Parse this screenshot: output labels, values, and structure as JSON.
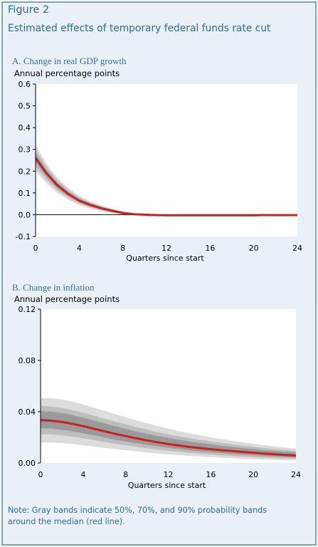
{
  "figure": {
    "label": "Figure 2",
    "title": "Estimated effects of temporary federal funds rate cut"
  },
  "note": "Note: Gray bands indicate 50%, 70%, and 90% probability bands around the median (red line).",
  "colors": {
    "frame_border": "#7aa6c2",
    "frame_background": "#e9f1f7",
    "title_text": "#2f6c9c",
    "median_line": "#c8211e",
    "band_90": "#dcdcdc",
    "band_70": "#bdbdbd",
    "band_50": "#9a9a9a"
  },
  "chart_data": [
    {
      "type": "area",
      "title": "A. Change in real GDP growth",
      "ylabel": "Annual percentage points",
      "xlabel": "Quarters since start",
      "xlim": [
        0,
        24
      ],
      "ylim": [
        -0.1,
        0.6
      ],
      "xticks": [
        0,
        4,
        8,
        12,
        16,
        20,
        24
      ],
      "yticks": [
        -0.1,
        0.0,
        0.1,
        0.2,
        0.3,
        0.4,
        0.5,
        0.6
      ],
      "ytick_labels": [
        "-0.1",
        "0.0",
        "0.1",
        "0.2",
        "0.3",
        "0.4",
        "0.5",
        "0.6"
      ],
      "x": [
        0,
        1,
        2,
        3,
        4,
        5,
        6,
        7,
        8,
        9,
        10,
        11,
        12,
        13,
        14,
        15,
        16,
        17,
        18,
        19,
        20,
        21,
        22,
        23,
        24
      ],
      "series": [
        {
          "name": "median",
          "values": [
            0.26,
            0.19,
            0.135,
            0.095,
            0.065,
            0.045,
            0.03,
            0.018,
            0.008,
            0.002,
            0.0,
            -0.002,
            -0.003,
            -0.003,
            -0.003,
            -0.003,
            -0.003,
            -0.003,
            -0.003,
            -0.003,
            -0.003,
            -0.002,
            -0.002,
            -0.002,
            -0.002
          ]
        }
      ],
      "bands": [
        {
          "name": "90%",
          "lower": [
            0.2,
            0.145,
            0.1,
            0.068,
            0.045,
            0.028,
            0.016,
            0.007,
            0.001,
            -0.003,
            -0.005,
            -0.006,
            -0.007,
            -0.007,
            -0.007,
            -0.007,
            -0.007,
            -0.007,
            -0.007,
            -0.007,
            -0.007,
            -0.006,
            -0.006,
            -0.006,
            -0.006
          ],
          "upper": [
            0.32,
            0.235,
            0.17,
            0.122,
            0.087,
            0.062,
            0.044,
            0.029,
            0.016,
            0.007,
            0.004,
            0.002,
            0.001,
            0.001,
            0.001,
            0.001,
            0.001,
            0.001,
            0.001,
            0.001,
            0.001,
            0.002,
            0.002,
            0.002,
            0.002
          ]
        },
        {
          "name": "70%",
          "lower": [
            0.22,
            0.16,
            0.112,
            0.077,
            0.052,
            0.034,
            0.021,
            0.011,
            0.004,
            -0.001,
            -0.003,
            -0.004,
            -0.005,
            -0.005,
            -0.005,
            -0.005,
            -0.005,
            -0.005,
            -0.005,
            -0.005,
            -0.005,
            -0.004,
            -0.004,
            -0.004,
            -0.004
          ],
          "upper": [
            0.3,
            0.22,
            0.158,
            0.113,
            0.079,
            0.056,
            0.039,
            0.025,
            0.013,
            0.005,
            0.002,
            0.0,
            -0.001,
            -0.001,
            -0.001,
            -0.001,
            -0.001,
            -0.001,
            -0.001,
            -0.001,
            -0.001,
            0.0,
            0.0,
            0.0,
            0.0
          ]
        },
        {
          "name": "50%",
          "lower": [
            0.24,
            0.175,
            0.123,
            0.086,
            0.058,
            0.039,
            0.025,
            0.014,
            0.006,
            0.0,
            -0.002,
            -0.003,
            -0.004,
            -0.004,
            -0.004,
            -0.004,
            -0.004,
            -0.004,
            -0.004,
            -0.004,
            -0.004,
            -0.003,
            -0.003,
            -0.003,
            -0.003
          ],
          "upper": [
            0.28,
            0.205,
            0.147,
            0.104,
            0.072,
            0.051,
            0.035,
            0.022,
            0.01,
            0.004,
            0.001,
            -0.001,
            -0.002,
            -0.002,
            -0.002,
            -0.002,
            -0.002,
            -0.002,
            -0.002,
            -0.002,
            -0.002,
            -0.001,
            -0.001,
            -0.001,
            -0.001
          ]
        }
      ],
      "grid": false
    },
    {
      "type": "area",
      "title": "B. Change in inflation",
      "ylabel": "Annual percentage points",
      "xlabel": "Quarters since start",
      "xlim": [
        0,
        24
      ],
      "ylim": [
        0.0,
        0.12
      ],
      "xticks": [
        0,
        4,
        8,
        12,
        16,
        20,
        24
      ],
      "yticks": [
        0.0,
        0.04,
        0.08,
        0.12
      ],
      "ytick_labels": [
        "0.00",
        "0.04",
        "0.08",
        "0.12"
      ],
      "x": [
        0,
        1,
        2,
        3,
        4,
        5,
        6,
        7,
        8,
        9,
        10,
        11,
        12,
        13,
        14,
        15,
        16,
        17,
        18,
        19,
        20,
        21,
        22,
        23,
        24
      ],
      "series": [
        {
          "name": "median",
          "values": [
            0.0335,
            0.033,
            0.032,
            0.0305,
            0.0287,
            0.0267,
            0.0247,
            0.0227,
            0.021,
            0.0192,
            0.0176,
            0.0161,
            0.0148,
            0.0136,
            0.0125,
            0.0116,
            0.0108,
            0.01,
            0.0093,
            0.0086,
            0.008,
            0.0074,
            0.0068,
            0.0063,
            0.0058
          ]
        }
      ],
      "bands": [
        {
          "name": "90%",
          "lower": [
            0.016,
            0.016,
            0.0155,
            0.0148,
            0.0138,
            0.0128,
            0.0118,
            0.0108,
            0.0099,
            0.009,
            0.0082,
            0.0074,
            0.0067,
            0.0061,
            0.0055,
            0.005,
            0.0045,
            0.0041,
            0.0037,
            0.0033,
            0.003,
            0.0027,
            0.0024,
            0.0021,
            0.0019
          ],
          "upper": [
            0.0505,
            0.0505,
            0.0495,
            0.0478,
            0.0456,
            0.0432,
            0.0407,
            0.0382,
            0.0357,
            0.0333,
            0.031,
            0.0288,
            0.0268,
            0.0249,
            0.0231,
            0.0215,
            0.02,
            0.0186,
            0.0173,
            0.0161,
            0.015,
            0.0139,
            0.0129,
            0.012,
            0.0112
          ]
        },
        {
          "name": "70%",
          "lower": [
            0.0225,
            0.0222,
            0.0215,
            0.0205,
            0.0192,
            0.0178,
            0.0164,
            0.015,
            0.0138,
            0.0125,
            0.0114,
            0.0104,
            0.0095,
            0.0087,
            0.0079,
            0.0072,
            0.0066,
            0.006,
            0.0055,
            0.005,
            0.0046,
            0.0042,
            0.0038,
            0.0035,
            0.0032
          ],
          "upper": [
            0.0445,
            0.044,
            0.043,
            0.0413,
            0.0392,
            0.0369,
            0.0346,
            0.0323,
            0.0301,
            0.028,
            0.026,
            0.0241,
            0.0224,
            0.0208,
            0.0193,
            0.018,
            0.0168,
            0.0156,
            0.0145,
            0.0135,
            0.0126,
            0.0117,
            0.0109,
            0.0101,
            0.0094
          ]
        },
        {
          "name": "50%",
          "lower": [
            0.027,
            0.0267,
            0.0259,
            0.0247,
            0.0232,
            0.0216,
            0.0199,
            0.0183,
            0.0168,
            0.0154,
            0.0141,
            0.0129,
            0.0118,
            0.0108,
            0.0099,
            0.0091,
            0.0084,
            0.0077,
            0.0071,
            0.0065,
            0.006,
            0.0055,
            0.005,
            0.0046,
            0.0042
          ],
          "upper": [
            0.0405,
            0.04,
            0.039,
            0.0373,
            0.0353,
            0.0331,
            0.0309,
            0.0287,
            0.0266,
            0.0246,
            0.0228,
            0.021,
            0.0195,
            0.0181,
            0.0168,
            0.0156,
            0.0145,
            0.0135,
            0.0125,
            0.0116,
            0.0108,
            0.01,
            0.0093,
            0.0087,
            0.0081
          ]
        }
      ],
      "grid": false
    }
  ]
}
